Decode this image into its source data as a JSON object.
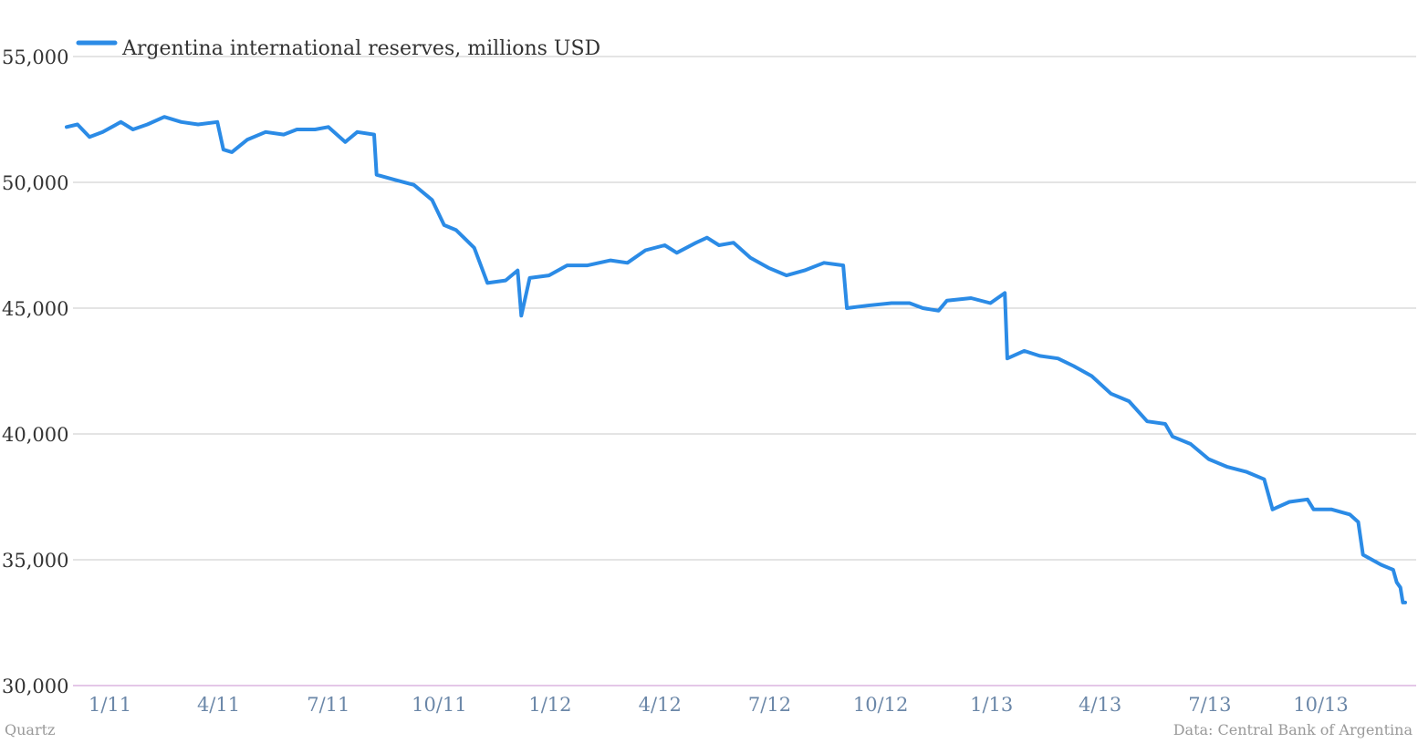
{
  "chart_data": {
    "type": "line",
    "title": "",
    "xlabel": "",
    "ylabel": "",
    "ylim": [
      30000,
      55000
    ],
    "grid": true,
    "legend_placement": "top-left",
    "y_ticks": [
      "30,000",
      "35,000",
      "40,000",
      "45,000",
      "50,000",
      "55,000"
    ],
    "y_tick_values": [
      30000,
      35000,
      40000,
      45000,
      50000,
      55000
    ],
    "x_ticks": [
      "1/11",
      "4/11",
      "7/11",
      "10/11",
      "1/12",
      "4/12",
      "7/12",
      "10/12",
      "1/13",
      "4/13",
      "7/13",
      "10/13"
    ],
    "x_tick_dates": [
      "2011-01-01",
      "2011-04-01",
      "2011-07-01",
      "2011-10-01",
      "2012-01-01",
      "2012-04-01",
      "2012-07-01",
      "2012-10-01",
      "2013-01-01",
      "2013-04-01",
      "2013-07-01",
      "2013-10-01"
    ],
    "xlim": [
      "2010-11-26",
      "2013-12-10"
    ],
    "series": [
      {
        "name": "Argentina international reserves, millions USD",
        "color": "#2b8be6",
        "points": [
          [
            "2010-11-26",
            52200
          ],
          [
            "2010-12-05",
            52300
          ],
          [
            "2010-12-15",
            51800
          ],
          [
            "2010-12-26",
            52000
          ],
          [
            "2011-01-10",
            52400
          ],
          [
            "2011-01-20",
            52100
          ],
          [
            "2011-02-01",
            52300
          ],
          [
            "2011-02-15",
            52600
          ],
          [
            "2011-03-01",
            52400
          ],
          [
            "2011-03-15",
            52300
          ],
          [
            "2011-03-31",
            52400
          ],
          [
            "2011-04-05",
            51300
          ],
          [
            "2011-04-12",
            51200
          ],
          [
            "2011-04-25",
            51700
          ],
          [
            "2011-05-10",
            52000
          ],
          [
            "2011-05-25",
            51900
          ],
          [
            "2011-06-05",
            52100
          ],
          [
            "2011-06-20",
            52100
          ],
          [
            "2011-07-01",
            52200
          ],
          [
            "2011-07-15",
            51600
          ],
          [
            "2011-07-25",
            52000
          ],
          [
            "2011-08-08",
            51900
          ],
          [
            "2011-08-10",
            50300
          ],
          [
            "2011-08-25",
            50100
          ],
          [
            "2011-09-10",
            49900
          ],
          [
            "2011-09-25",
            49300
          ],
          [
            "2011-10-05",
            48300
          ],
          [
            "2011-10-15",
            48100
          ],
          [
            "2011-10-30",
            47400
          ],
          [
            "2011-11-10",
            46000
          ],
          [
            "2011-11-25",
            46100
          ],
          [
            "2011-12-05",
            46500
          ],
          [
            "2011-12-08",
            44700
          ],
          [
            "2011-12-15",
            46200
          ],
          [
            "2011-12-31",
            46300
          ],
          [
            "2012-01-15",
            46700
          ],
          [
            "2012-02-01",
            46700
          ],
          [
            "2012-02-20",
            46900
          ],
          [
            "2012-03-05",
            46800
          ],
          [
            "2012-03-20",
            47300
          ],
          [
            "2012-04-05",
            47500
          ],
          [
            "2012-04-15",
            47200
          ],
          [
            "2012-05-01",
            47600
          ],
          [
            "2012-05-10",
            47800
          ],
          [
            "2012-05-20",
            47500
          ],
          [
            "2012-06-01",
            47600
          ],
          [
            "2012-06-15",
            47000
          ],
          [
            "2012-06-30",
            46600
          ],
          [
            "2012-07-15",
            46300
          ],
          [
            "2012-07-30",
            46500
          ],
          [
            "2012-08-15",
            46800
          ],
          [
            "2012-08-31",
            46700
          ],
          [
            "2012-09-03",
            45000
          ],
          [
            "2012-09-20",
            45100
          ],
          [
            "2012-10-10",
            45200
          ],
          [
            "2012-10-25",
            45200
          ],
          [
            "2012-11-05",
            45000
          ],
          [
            "2012-11-18",
            44900
          ],
          [
            "2012-11-25",
            45300
          ],
          [
            "2012-12-15",
            45400
          ],
          [
            "2012-12-31",
            45200
          ],
          [
            "2013-01-12",
            45600
          ],
          [
            "2013-01-14",
            43000
          ],
          [
            "2013-01-28",
            43300
          ],
          [
            "2013-02-10",
            43100
          ],
          [
            "2013-02-25",
            43000
          ],
          [
            "2013-03-10",
            42700
          ],
          [
            "2013-03-25",
            42300
          ],
          [
            "2013-04-10",
            41600
          ],
          [
            "2013-04-25",
            41300
          ],
          [
            "2013-05-10",
            40500
          ],
          [
            "2013-05-25",
            40400
          ],
          [
            "2013-05-31",
            39900
          ],
          [
            "2013-06-15",
            39600
          ],
          [
            "2013-06-30",
            39000
          ],
          [
            "2013-07-15",
            38700
          ],
          [
            "2013-07-31",
            38500
          ],
          [
            "2013-08-15",
            38200
          ],
          [
            "2013-08-22",
            37000
          ],
          [
            "2013-09-05",
            37300
          ],
          [
            "2013-09-20",
            37400
          ],
          [
            "2013-09-25",
            37000
          ],
          [
            "2013-10-10",
            37000
          ],
          [
            "2013-10-25",
            36800
          ],
          [
            "2013-11-01",
            36500
          ],
          [
            "2013-11-05",
            35200
          ],
          [
            "2013-11-20",
            34800
          ],
          [
            "2013-11-30",
            34600
          ],
          [
            "2013-12-03",
            34100
          ],
          [
            "2013-12-06",
            33900
          ],
          [
            "2013-12-08",
            33300
          ],
          [
            "2013-12-10",
            33300
          ]
        ]
      }
    ]
  },
  "footer": {
    "source_left": "Quartz",
    "source_right": "Data: Central Bank of Argentina"
  }
}
